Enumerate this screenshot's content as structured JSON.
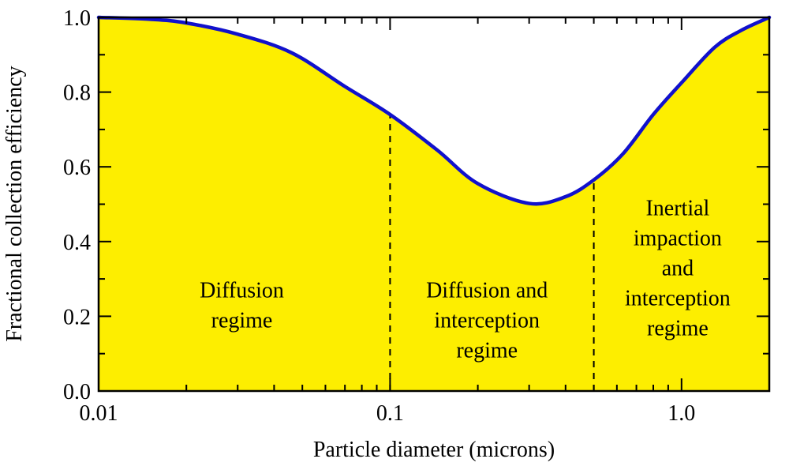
{
  "chart_data": {
    "type": "area",
    "title": "",
    "xlabel": "Particle diameter (microns)",
    "ylabel": "Fractional collection efficiency",
    "x_scale": "log",
    "xlim": [
      0.01,
      2.0
    ],
    "ylim": [
      0.0,
      1.0
    ],
    "grid": false,
    "legend": null,
    "x": [
      0.01,
      0.015,
      0.02,
      0.03,
      0.046,
      0.07,
      0.1,
      0.145,
      0.2,
      0.3,
      0.4,
      0.5,
      0.63,
      0.8,
      1.0,
      1.3,
      1.6,
      2.0
    ],
    "series": [
      {
        "name": "Fractional collection efficiency",
        "values": [
          1.0,
          0.995,
          0.985,
          0.955,
          0.905,
          0.815,
          0.74,
          0.645,
          0.555,
          0.502,
          0.52,
          0.565,
          0.635,
          0.74,
          0.825,
          0.92,
          0.965,
          1.0
        ]
      }
    ],
    "x_major_ticks": [
      {
        "value": 0.01,
        "label": "0.01"
      },
      {
        "value": 0.1,
        "label": "0.1"
      },
      {
        "value": 1.0,
        "label": "1.0"
      }
    ],
    "y_major_ticks": [
      {
        "value": 0.0,
        "label": "0.0"
      },
      {
        "value": 0.2,
        "label": "0.2"
      },
      {
        "value": 0.4,
        "label": "0.4"
      },
      {
        "value": 0.6,
        "label": "0.6"
      },
      {
        "value": 0.8,
        "label": "0.8"
      },
      {
        "value": 1.0,
        "label": "1.0"
      }
    ],
    "y_minor_ticks": [
      0.1,
      0.3,
      0.5,
      0.7,
      0.9
    ],
    "boundaries": [
      {
        "x": 0.1,
        "y_top": 0.74
      },
      {
        "x": 0.5,
        "y_top": 0.565
      }
    ],
    "regions": [
      {
        "name": "diffusion",
        "lines": [
          "Diffusion",
          "regime"
        ],
        "x": 0.031,
        "y": 0.21
      },
      {
        "name": "diffusion-interception",
        "lines": [
          "Diffusion and",
          "interception",
          "regime"
        ],
        "x": 0.215,
        "y": 0.17
      },
      {
        "name": "inertial-impaction-interception",
        "lines": [
          "Inertial",
          "impaction",
          "and",
          "interception",
          "regime"
        ],
        "x": 0.97,
        "y": 0.31
      }
    ],
    "colors": {
      "curve": "#1111cc",
      "fill": "#fdee00",
      "axis": "#000000",
      "dashed": "#000000",
      "background": "#ffffff"
    }
  }
}
